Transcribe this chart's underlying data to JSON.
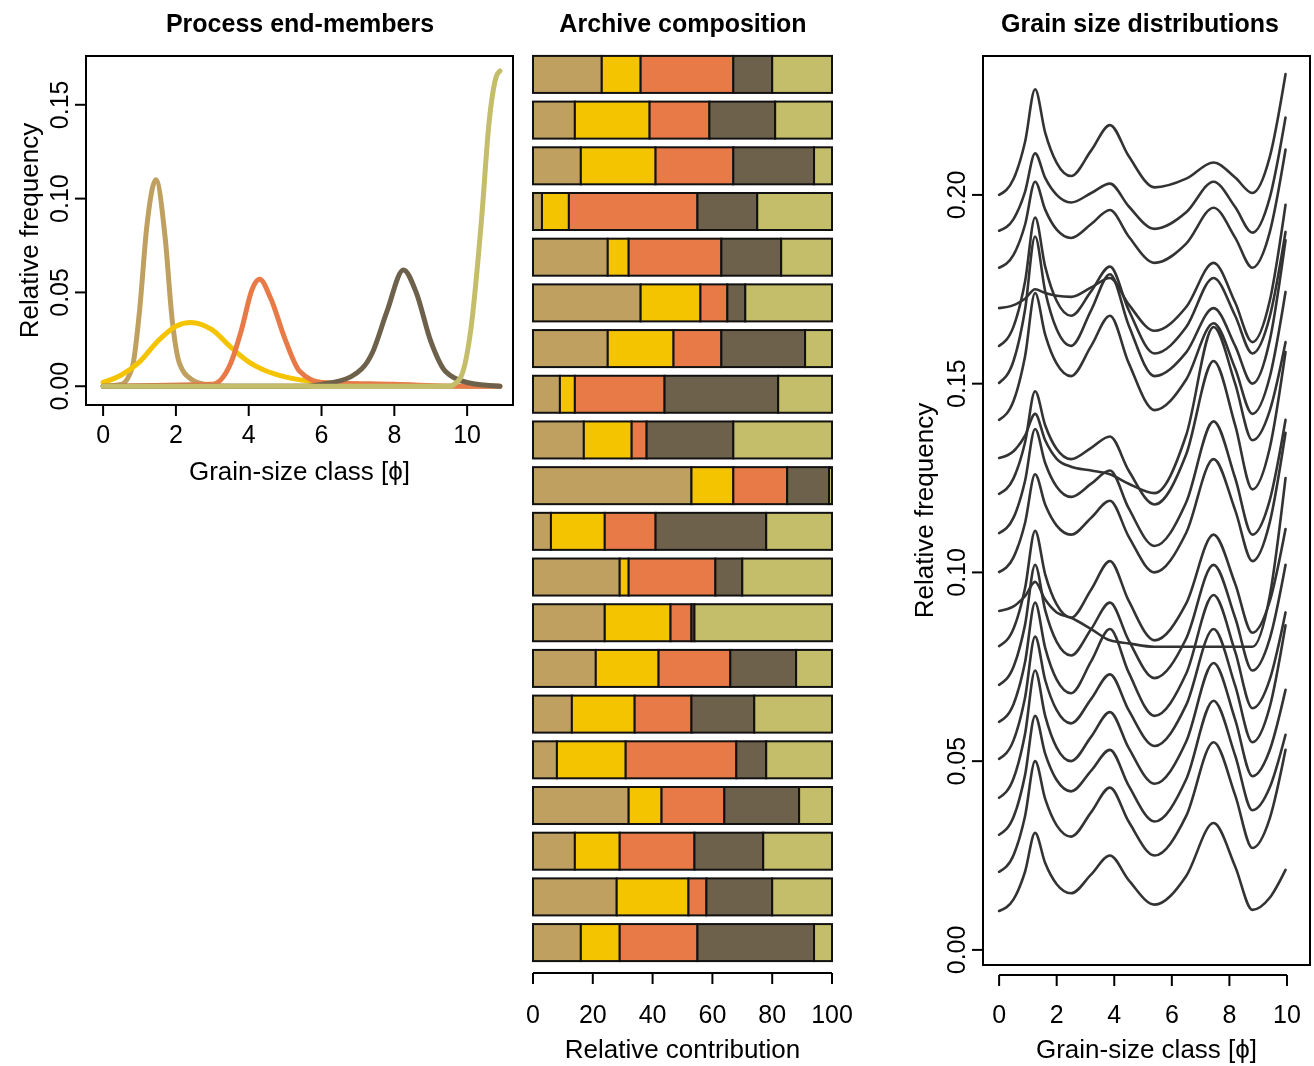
{
  "chart_data": [
    {
      "type": "line",
      "title": "Process end-members",
      "xlabel": "Grain-size class [ϕ]",
      "ylabel": "Relative frequency",
      "xlim": [
        -0.47,
        11.26
      ],
      "ylim": [
        -0.01,
        0.176
      ],
      "xticks": [
        0,
        2,
        4,
        6,
        8,
        10
      ],
      "yticks": [
        {
          "value": 0,
          "label": "0.00"
        },
        {
          "value": 0.05,
          "label": "0.05"
        },
        {
          "value": 0.1,
          "label": "0.10"
        },
        {
          "value": 0.15,
          "label": "0.15"
        }
      ],
      "series": [
        {
          "color": "#bfa060",
          "x": [
            0,
            0.5,
            0.8,
            1.0,
            1.2,
            1.45,
            1.7,
            1.9,
            2.1,
            2.4,
            2.8,
            3.5,
            5,
            8,
            10.9
          ],
          "values": [
            0,
            0.001,
            0.01,
            0.04,
            0.085,
            0.11,
            0.08,
            0.035,
            0.012,
            0.004,
            0.001,
            0,
            0,
            0,
            0
          ]
        },
        {
          "color": "#f5c400",
          "x": [
            0,
            0.5,
            1,
            1.5,
            2,
            2.4,
            3,
            3.5,
            4,
            4.5,
            5,
            6,
            7
          ],
          "values": [
            0.002,
            0.006,
            0.013,
            0.024,
            0.032,
            0.034,
            0.03,
            0.021,
            0.013,
            0.008,
            0.005,
            0.002,
            0.001
          ]
        },
        {
          "color": "#e87a48",
          "x": [
            0,
            3,
            3.5,
            3.8,
            4.1,
            4.3,
            4.6,
            5,
            5.4,
            6,
            8,
            10,
            10.9
          ],
          "values": [
            0,
            0.001,
            0.012,
            0.03,
            0.052,
            0.057,
            0.047,
            0.025,
            0.008,
            0.002,
            0.001,
            0,
            0
          ]
        },
        {
          "color": "#6e614c",
          "x": [
            0,
            5.5,
            6,
            6.8,
            7.4,
            7.8,
            8.25,
            8.6,
            9,
            9.4,
            10,
            10.9
          ],
          "values": [
            0,
            0,
            0.001,
            0.005,
            0.018,
            0.04,
            0.062,
            0.05,
            0.024,
            0.008,
            0.002,
            0
          ]
        },
        {
          "color": "#c4bd69",
          "x": [
            0,
            9.5,
            9.8,
            10.1,
            10.4,
            10.6,
            10.8,
            10.9
          ],
          "values": [
            0,
            0,
            0.004,
            0.03,
            0.09,
            0.14,
            0.165,
            0.168
          ]
        }
      ]
    },
    {
      "type": "bar",
      "title": "Archive composition",
      "xlabel": "Relative contribution",
      "orientation": "horizontal",
      "stacked": true,
      "tick_labels": "x",
      "xlim": [
        0,
        100
      ],
      "xticks": [
        0,
        20,
        40,
        60,
        80,
        100
      ],
      "categories": [
        null,
        null,
        null,
        null,
        null,
        null,
        null,
        null,
        null,
        null,
        null,
        null,
        null,
        null,
        null,
        null,
        null,
        null,
        null,
        null
      ],
      "series": [
        {
          "color": "#bfa060",
          "values": [
            23,
            14,
            16,
            3,
            25,
            36,
            25,
            9,
            17,
            53,
            6,
            29,
            24,
            21,
            13,
            8,
            32,
            14,
            28,
            16
          ]
        },
        {
          "color": "#f5c400",
          "values": [
            13,
            25,
            25,
            9,
            7,
            20,
            22,
            5,
            16,
            14,
            18,
            3,
            22,
            21,
            21,
            23,
            11,
            15,
            24,
            13
          ]
        },
        {
          "color": "#e87a48",
          "values": [
            31,
            20,
            26,
            43,
            31,
            9,
            16,
            30,
            5,
            18,
            17,
            29,
            7,
            24,
            19,
            37,
            21,
            25,
            6,
            26
          ]
        },
        {
          "color": "#6e614c",
          "values": [
            13,
            22,
            27,
            20,
            20,
            6,
            28,
            38,
            29,
            14,
            37,
            9,
            1,
            22,
            21,
            10,
            25,
            23,
            22,
            39
          ]
        },
        {
          "color": "#c4bd69",
          "values": [
            20,
            19,
            6,
            25,
            17,
            29,
            9,
            18,
            33,
            1,
            22,
            30,
            46,
            12,
            26,
            22,
            11,
            23,
            20,
            6
          ]
        }
      ]
    },
    {
      "type": "line",
      "title": "Grain size distributions",
      "xlabel": "Grain-size class [ϕ]",
      "ylabel": "Relative frequency",
      "xlim": [
        -0.56,
        10.8
      ],
      "ylim": [
        -0.004,
        0.2368
      ],
      "xticks": [
        0,
        2,
        4,
        6,
        8,
        10
      ],
      "yticks": [
        {
          "value": 0,
          "label": "0.00"
        },
        {
          "value": 0.05,
          "label": "0.05"
        },
        {
          "value": 0.1,
          "label": "0.10"
        },
        {
          "value": 0.15,
          "label": "0.15"
        },
        {
          "value": 0.2,
          "label": "0.20"
        }
      ],
      "x": [
        0,
        0.5,
        0.9,
        1.25,
        1.6,
        2.0,
        2.5,
        3.2,
        3.85,
        4.5,
        5.4,
        6.5,
        7.45,
        8.2,
        8.8,
        9.4,
        9.95
      ],
      "series": [
        {
          "color": "#333333",
          "values": [
            0.2,
            0.2042,
            0.214,
            0.228,
            0.2165,
            0.2085,
            0.205,
            0.2118,
            0.2185,
            0.2103,
            0.202,
            0.2043,
            0.2086,
            0.2046,
            0.2005,
            0.21,
            0.232
          ]
        },
        {
          "color": "#333333",
          "values": [
            0.1905,
            0.1936,
            0.2008,
            0.211,
            0.2045,
            0.2,
            0.198,
            0.2005,
            0.203,
            0.197,
            0.191,
            0.1954,
            0.2035,
            0.1968,
            0.19,
            0.1992,
            0.2205
          ]
        },
        {
          "color": "#333333",
          "values": [
            0.1807,
            0.1841,
            0.1921,
            0.2035,
            0.1961,
            0.1908,
            0.1886,
            0.1923,
            0.196,
            0.189,
            0.182,
            0.1871,
            0.1966,
            0.1887,
            0.1807,
            0.1901,
            0.212
          ]
        },
        {
          "color": "#333333",
          "values": [
            0.17,
            0.1708,
            0.1725,
            0.175,
            0.174,
            0.1733,
            0.173,
            0.1755,
            0.178,
            0.171,
            0.164,
            0.1703,
            0.182,
            0.1715,
            0.161,
            0.1719,
            0.1974
          ]
        },
        {
          "color": "#333333",
          "values": [
            0.16,
            0.1651,
            0.177,
            0.194,
            0.181,
            0.1719,
            0.168,
            0.1745,
            0.181,
            0.1695,
            0.158,
            0.165,
            0.178,
            0.168,
            0.158,
            0.1677,
            0.1902
          ]
        },
        {
          "color": "#333333",
          "values": [
            0.1502,
            0.156,
            0.1696,
            0.189,
            0.1745,
            0.1644,
            0.16,
            0.1695,
            0.179,
            0.1655,
            0.152,
            0.1583,
            0.17,
            0.16,
            0.15,
            0.1614,
            0.188
          ]
        },
        {
          "color": "#333333",
          "values": [
            0.1404,
            0.1454,
            0.1572,
            0.174,
            0.163,
            0.1553,
            0.152,
            0.16,
            0.168,
            0.1555,
            0.143,
            0.1511,
            0.166,
            0.154,
            0.142,
            0.1517,
            0.1743
          ]
        },
        {
          "color": "#333333",
          "values": [
            0.1303,
            0.1321,
            0.1362,
            0.142,
            0.135,
            0.1301,
            0.128,
            0.127,
            0.126,
            0.1235,
            0.121,
            0.1364,
            0.165,
            0.15,
            0.135,
            0.1428,
            0.161
          ]
        },
        {
          "color": "#333333",
          "values": [
            0.1208,
            0.1249,
            0.1344,
            0.148,
            0.139,
            0.1327,
            0.13,
            0.133,
            0.136,
            0.127,
            0.118,
            0.1313,
            0.156,
            0.139,
            0.122,
            0.1329,
            0.1584
          ]
        },
        {
          "color": "#333333",
          "values": [
            0.1104,
            0.1145,
            0.1242,
            0.138,
            0.129,
            0.1227,
            0.12,
            0.1235,
            0.127,
            0.117,
            0.107,
            0.1186,
            0.14,
            0.125,
            0.11,
            0.1191,
            0.1404
          ]
        },
        {
          "color": "#333333",
          "values": [
            0.1001,
            0.104,
            0.1131,
            0.126,
            0.118,
            0.1124,
            0.11,
            0.1145,
            0.119,
            0.1095,
            0.1,
            0.1105,
            0.13,
            0.1165,
            0.103,
            0.1132,
            0.137
          ]
        },
        {
          "color": "#333333",
          "values": [
            0.0898,
            0.091,
            0.0937,
            0.0975,
            0.0928,
            0.0894,
            0.088,
            0.085,
            0.082,
            0.0812,
            0.0803,
            0.0803,
            0.0803,
            0.0803,
            0.0803,
            0.0937,
            0.125
          ]
        },
        {
          "color": "#333333",
          "values": [
            0.0805,
            0.0851,
            0.0958,
            0.111,
            0.0995,
            0.0915,
            0.088,
            0.0955,
            0.103,
            0.0925,
            0.082,
            0.0918,
            0.11,
            0.097,
            0.084,
            0.0923,
            0.1115
          ]
        },
        {
          "color": "#333333",
          "values": [
            0.0702,
            0.075,
            0.0861,
            0.102,
            0.09,
            0.0816,
            0.078,
            0.085,
            0.092,
            0.082,
            0.072,
            0.0825,
            0.102,
            0.088,
            0.074,
            0.0824,
            0.102
          ]
        },
        {
          "color": "#333333",
          "values": [
            0.0604,
            0.0651,
            0.0762,
            0.092,
            0.08,
            0.0716,
            0.068,
            0.0765,
            0.085,
            0.0735,
            0.062,
            0.0732,
            0.094,
            0.079,
            0.064,
            0.0716,
            0.0894
          ]
        },
        {
          "color": "#333333",
          "values": [
            0.0506,
            0.0555,
            0.0668,
            0.083,
            0.0715,
            0.0635,
            0.06,
            0.0665,
            0.073,
            0.0635,
            0.054,
            0.0649,
            0.085,
            0.07,
            0.055,
            0.0643,
            0.086
          ]
        },
        {
          "color": "#333333",
          "values": [
            0.0403,
            0.0454,
            0.0572,
            0.074,
            0.062,
            0.0536,
            0.05,
            0.0565,
            0.063,
            0.0535,
            0.044,
            0.0552,
            0.076,
            0.061,
            0.046,
            0.0529,
            0.0689
          ]
        },
        {
          "color": "#333333",
          "values": [
            0.0305,
            0.0352,
            0.0463,
            0.062,
            0.052,
            0.045,
            0.042,
            0.0475,
            0.053,
            0.0435,
            0.034,
            0.0452,
            0.066,
            0.0515,
            0.037,
            0.043,
            0.057
          ]
        },
        {
          "color": "#333333",
          "values": [
            0.0207,
            0.0251,
            0.0354,
            0.05,
            0.04,
            0.033,
            0.03,
            0.0365,
            0.043,
            0.034,
            0.025,
            0.0355,
            0.055,
            0.041,
            0.027,
            0.0348,
            0.053
          ]
        },
        {
          "color": "#333333",
          "values": [
            0.0103,
            0.0134,
            0.0207,
            0.031,
            0.023,
            0.0174,
            0.015,
            0.02,
            0.025,
            0.0185,
            0.012,
            0.0196,
            0.0336,
            0.0221,
            0.0106,
            0.0138,
            0.0212
          ]
        }
      ]
    }
  ]
}
